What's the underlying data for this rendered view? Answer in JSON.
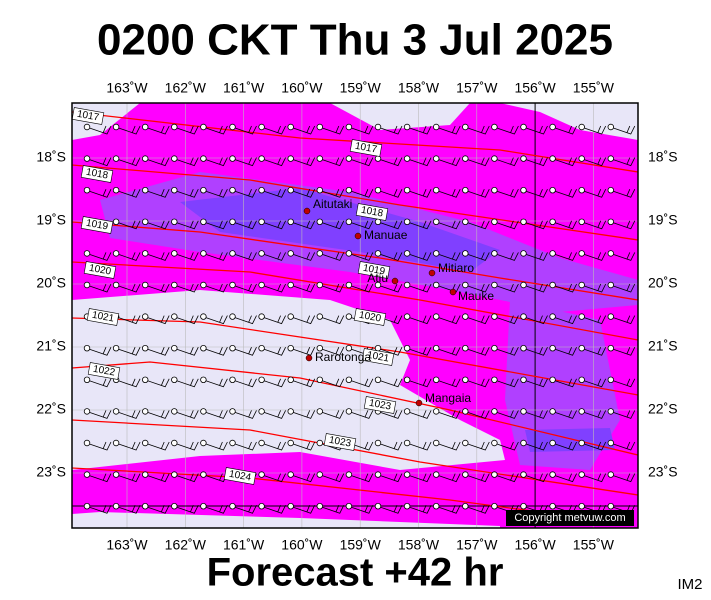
{
  "header": {
    "title": "0200 CKT Thu 3 Jul 2025"
  },
  "map": {
    "lon_labels": [
      "163˚W",
      "162˚W",
      "161˚W",
      "160˚W",
      "159˚W",
      "158˚W",
      "157˚W",
      "156˚W",
      "155˚W"
    ],
    "lat_labels": [
      "18˚S",
      "19˚S",
      "20˚S",
      "21˚S",
      "22˚S",
      "23˚S"
    ],
    "places": [
      "Aitutaki",
      "Manuae",
      "Mitiaro",
      "Atiu",
      "Mauke",
      "Rarotonga",
      "Mangaia"
    ],
    "isobar_labels": [
      "1017",
      "1017",
      "1018",
      "1018",
      "1019",
      "1020",
      "1019",
      "1020",
      "1021",
      "1021",
      "1022",
      "1023",
      "1023",
      "1024"
    ],
    "copyright": "Copyright metvuw.com"
  },
  "footer": {
    "forecast": "Forecast +42 hr",
    "code": "IM2"
  }
}
